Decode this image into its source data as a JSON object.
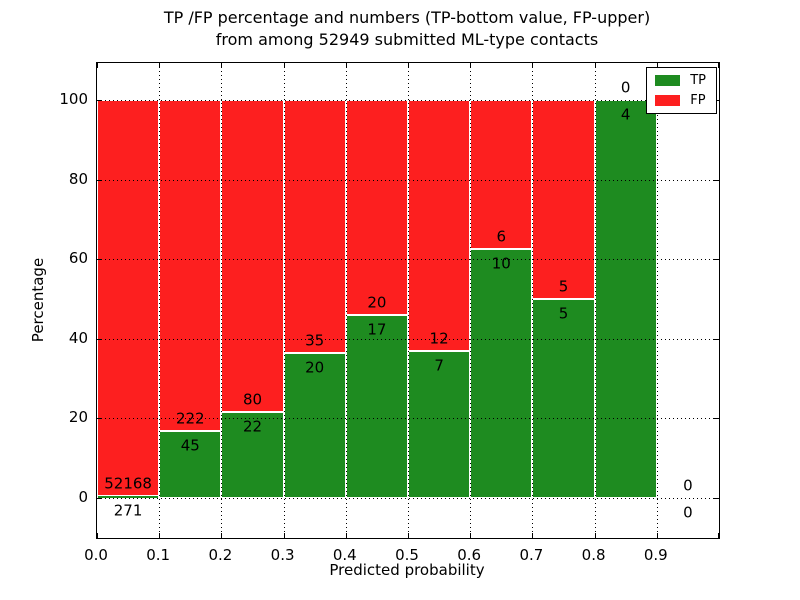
{
  "chart_data": {
    "type": "bar",
    "stacked": true,
    "percentage": true,
    "title_lines": [
      "TP /FP percentage and numbers (TP-bottom value, FP-upper)",
      "from among 52949 submitted ML-type contacts"
    ],
    "xlabel": "Predicted probability",
    "ylabel": "Percentage",
    "xlim": [
      0.0,
      1.0
    ],
    "ylim": [
      -10,
      109.3
    ],
    "xtick_labels": [
      "0.0",
      "0.1",
      "0.2",
      "0.3",
      "0.4",
      "0.5",
      "0.6",
      "0.7",
      "0.8",
      "0.9"
    ],
    "ytick_labels": [
      "0",
      "20",
      "40",
      "60",
      "80",
      "100"
    ],
    "grid": {
      "style": "dotted",
      "color": "#000000",
      "axes": "both",
      "on_top": true
    },
    "colors": {
      "tp": "#1e8b20",
      "fp": "#fd1f1f",
      "bar_edge": "#ffffff",
      "frame": "#000000",
      "text": "#000000",
      "background": "#ffffff"
    },
    "legend": {
      "position": "upper-right",
      "entries": [
        {
          "label": "TP",
          "color": "#1e8b20"
        },
        {
          "label": "FP",
          "color": "#fd1f1f"
        }
      ]
    },
    "total_submitted": 52949,
    "bins": [
      {
        "range": "0.0-0.1",
        "tp": 271,
        "fp": 52168,
        "tp_pct": 0.52,
        "has_bar": true
      },
      {
        "range": "0.1-0.2",
        "tp": 45,
        "fp": 222,
        "tp_pct": 16.85,
        "has_bar": true
      },
      {
        "range": "0.2-0.3",
        "tp": 22,
        "fp": 80,
        "tp_pct": 21.57,
        "has_bar": true
      },
      {
        "range": "0.3-0.4",
        "tp": 20,
        "fp": 35,
        "tp_pct": 36.36,
        "has_bar": true
      },
      {
        "range": "0.4-0.5",
        "tp": 17,
        "fp": 20,
        "tp_pct": 45.95,
        "has_bar": true
      },
      {
        "range": "0.5-0.6",
        "tp": 7,
        "fp": 12,
        "tp_pct": 36.84,
        "has_bar": true
      },
      {
        "range": "0.6-0.7",
        "tp": 10,
        "fp": 6,
        "tp_pct": 62.5,
        "has_bar": true
      },
      {
        "range": "0.7-0.8",
        "tp": 5,
        "fp": 5,
        "tp_pct": 50.0,
        "has_bar": true
      },
      {
        "range": "0.8-0.9",
        "tp": 4,
        "fp": 0,
        "tp_pct": 100.0,
        "has_bar": true
      },
      {
        "range": "0.9-1.0",
        "tp": 0,
        "fp": 0,
        "tp_pct": 0.0,
        "has_bar": false
      }
    ]
  }
}
